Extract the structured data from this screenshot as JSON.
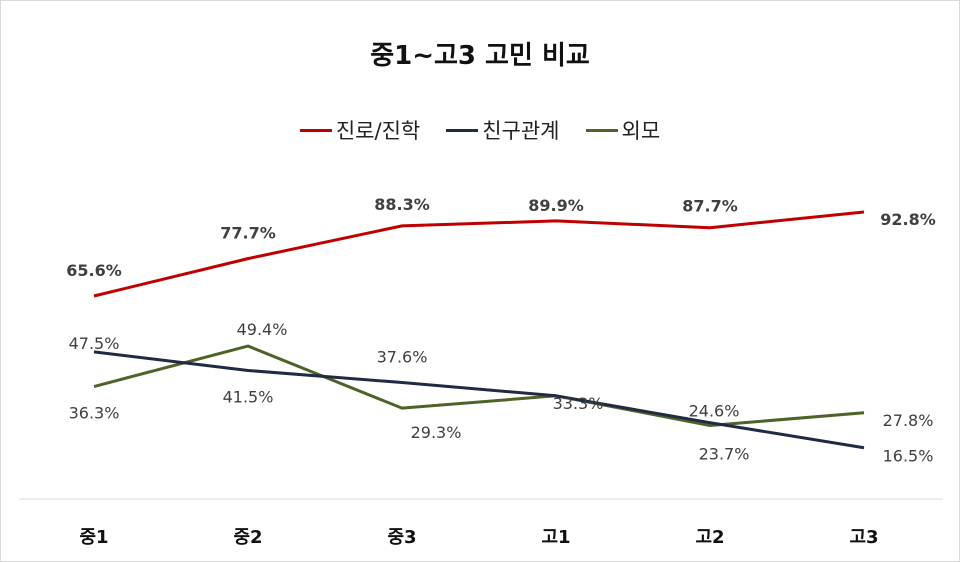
{
  "chart_data": {
    "type": "line",
    "title": "중1~고3 고민 비교",
    "categories": [
      "중1",
      "중2",
      "중3",
      "고1",
      "고2",
      "고3"
    ],
    "series": [
      {
        "name": "진로/진학",
        "color": "#c00000",
        "values": [
          65.6,
          77.7,
          88.3,
          89.9,
          87.7,
          92.8
        ],
        "labels": [
          "65.6%",
          "77.7%",
          "88.3%",
          "89.9%",
          "87.7%",
          "92.8%"
        ]
      },
      {
        "name": "친구관계",
        "color": "#1f2a44",
        "values": [
          47.5,
          41.5,
          37.6,
          33.3,
          24.6,
          16.5
        ],
        "labels": [
          "47.5%",
          "41.5%",
          "37.6%",
          "",
          "24.6%",
          "16.5%"
        ]
      },
      {
        "name": "외모",
        "color": "#4f6228",
        "values": [
          36.3,
          49.4,
          29.3,
          33.3,
          23.7,
          27.8
        ],
        "labels": [
          "36.3%",
          "49.4%",
          "29.3%",
          "33.3%",
          "23.7%",
          "27.8%"
        ]
      }
    ],
    "ylim": [
      0,
      100
    ],
    "grid": false,
    "legend": "top"
  }
}
